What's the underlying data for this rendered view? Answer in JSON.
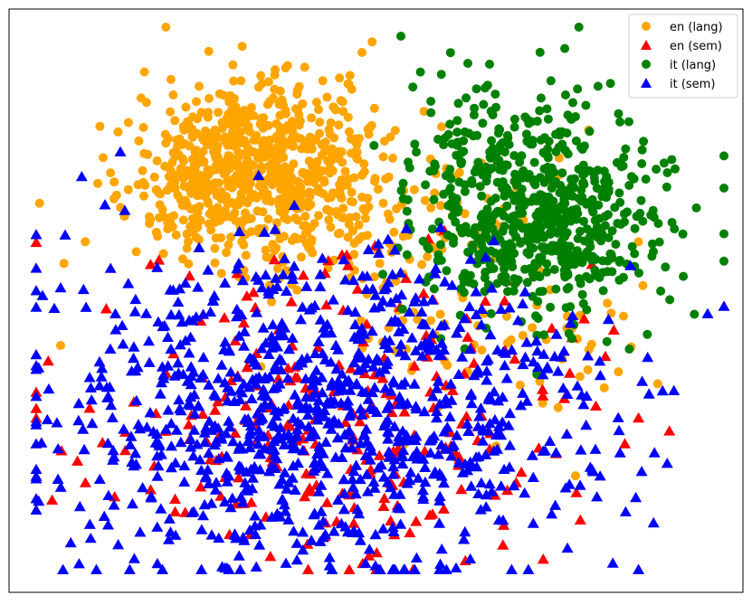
{
  "chart_data": {
    "type": "scatter",
    "title": "",
    "xlabel": "",
    "ylabel": "",
    "axes_visible": false,
    "grid": false,
    "legend_position": "top-right",
    "colors": {
      "en_lang": "#ffa500",
      "en_sem": "#ff0000",
      "it_lang": "#008000",
      "it_sem": "#0000ff",
      "frame": "#000000"
    },
    "legend": [
      {
        "name": "en (lang)",
        "color": "#ffa500",
        "marker": "circle"
      },
      {
        "name": "en (sem)",
        "color": "#ff0000",
        "marker": "triangle"
      },
      {
        "name": "it (lang)",
        "color": "#008000",
        "marker": "circle"
      },
      {
        "name": "it (sem)",
        "color": "#0000ff",
        "marker": "triangle"
      }
    ],
    "clusters": [
      {
        "series": "en (lang)",
        "cx": 280,
        "cy": 180,
        "sx": 65,
        "sy": 45,
        "n": 700
      },
      {
        "series": "en (lang)",
        "cx": 360,
        "cy": 240,
        "sx": 120,
        "sy": 45,
        "n": 160
      },
      {
        "series": "en (lang)",
        "cx": 560,
        "cy": 360,
        "sx": 110,
        "sy": 55,
        "n": 70
      },
      {
        "series": "it (lang)",
        "cx": 600,
        "cy": 240,
        "sx": 70,
        "sy": 55,
        "n": 650
      },
      {
        "series": "it (lang)",
        "cx": 520,
        "cy": 140,
        "sx": 35,
        "sy": 40,
        "n": 50
      },
      {
        "series": "en (sem)",
        "cx": 360,
        "cy": 460,
        "sx": 150,
        "sy": 85,
        "n": 260
      },
      {
        "series": "it (sem)",
        "cx": 360,
        "cy": 460,
        "sx": 155,
        "sy": 90,
        "n": 1000
      }
    ],
    "outliers": [
      {
        "series": "en (lang)",
        "x": 400,
        "y": 58
      },
      {
        "series": "en (lang)",
        "x": 67,
        "y": 382
      },
      {
        "series": "it (lang)",
        "x": 443,
        "y": 40
      },
      {
        "series": "it (lang)",
        "x": 625,
        "y": 105
      },
      {
        "series": "it (sem)",
        "x": 782,
        "y": 347
      },
      {
        "series": "it (sem)",
        "x": 133,
        "y": 168
      },
      {
        "series": "it (sem)",
        "x": 47,
        "y": 327
      },
      {
        "series": "it (sem)",
        "x": 404,
        "y": 623
      },
      {
        "series": "it (sem)",
        "x": 316,
        "y": 623
      },
      {
        "series": "it (sem)",
        "x": 658,
        "y": 497
      }
    ],
    "units": "tsne-2d-arbitrary"
  }
}
